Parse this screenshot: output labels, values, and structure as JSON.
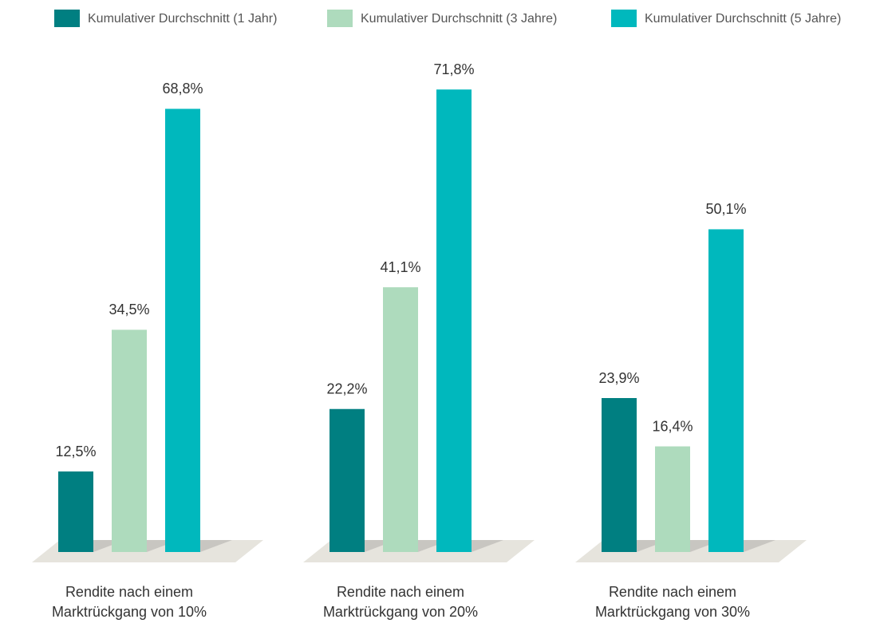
{
  "chart_data": {
    "type": "bar",
    "categories": [
      "Rendite nach einem Marktrückgang von 10%",
      "Rendite nach einem Marktrückgang von 20%",
      "Rendite nach einem Marktrückgang von 30%"
    ],
    "series": [
      {
        "name": "Kumulativer Durchschnitt (1 Jahr)",
        "color": "#007f81",
        "values": [
          12.5,
          22.2,
          23.9
        ],
        "value_labels": [
          "12,5%",
          "22,2%",
          "23,9%"
        ]
      },
      {
        "name": "Kumulativer Durchschnitt (3 Jahre)",
        "color": "#aedbbd",
        "values": [
          34.5,
          41.1,
          16.4
        ],
        "value_labels": [
          "34,5%",
          "41,1%",
          "16,4%"
        ]
      },
      {
        "name": "Kumulativer Durchschnitt (5 Jahre)",
        "color": "#00b8bd",
        "values": [
          68.8,
          71.8,
          50.1
        ],
        "value_labels": [
          "68,8%",
          "71,8%",
          "50,1%"
        ]
      }
    ],
    "ylim": [
      0,
      80
    ],
    "legend": "top"
  }
}
